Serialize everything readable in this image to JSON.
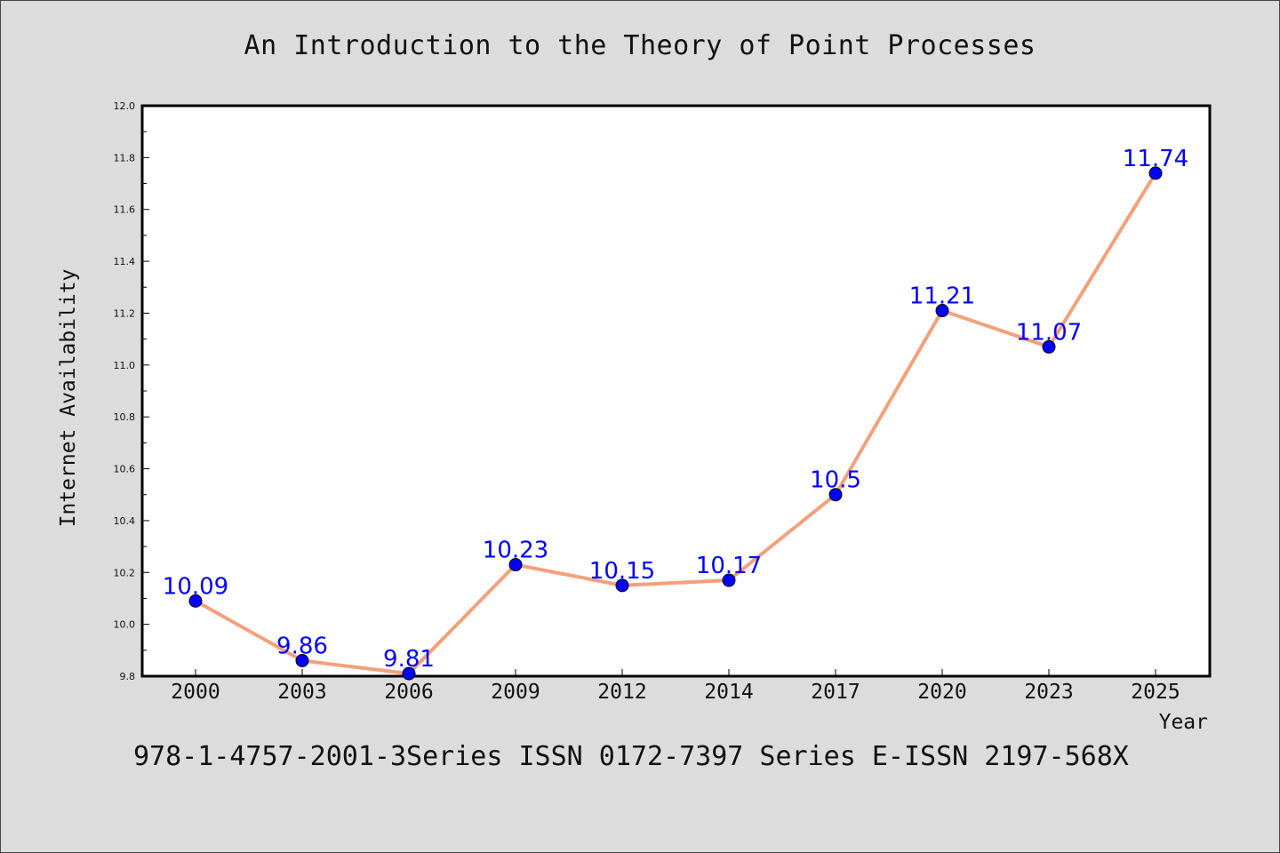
{
  "title": "An Introduction to the Theory of Point Processes",
  "footer": "978-1-4757-2001-3Series ISSN 0172-7397 Series E-ISSN 2197-568X",
  "colors": {
    "background": "#dcdcdc",
    "plot_background": "#ffffff",
    "line": "#f4a07a",
    "marker": "#0000ff",
    "data_label": "#0000ff"
  },
  "chart_data": {
    "type": "line",
    "title": "An Introduction to the Theory of Point Processes",
    "xlabel": "Year",
    "ylabel": "Internet Availability",
    "categories": [
      "2000",
      "2003",
      "2006",
      "2009",
      "2012",
      "2014",
      "2017",
      "2020",
      "2023",
      "2025"
    ],
    "series": [
      {
        "values": [
          10.09,
          9.86,
          9.81,
          10.23,
          10.15,
          10.17,
          10.5,
          11.21,
          11.07,
          11.74
        ],
        "labels": [
          "10.09",
          "9.86",
          "9.81",
          "10.23",
          "10.15",
          "10.17",
          "10.5",
          "11.21",
          "11.07",
          "11.74"
        ]
      }
    ],
    "ylim": [
      9.8,
      12.0
    ],
    "yticks": [
      "9.8",
      "10.0",
      "10.2",
      "10.4",
      "10.6",
      "10.8",
      "11.0",
      "11.2",
      "11.4",
      "11.6",
      "11.8",
      "12.0"
    ],
    "grid": false,
    "legend": "none"
  }
}
